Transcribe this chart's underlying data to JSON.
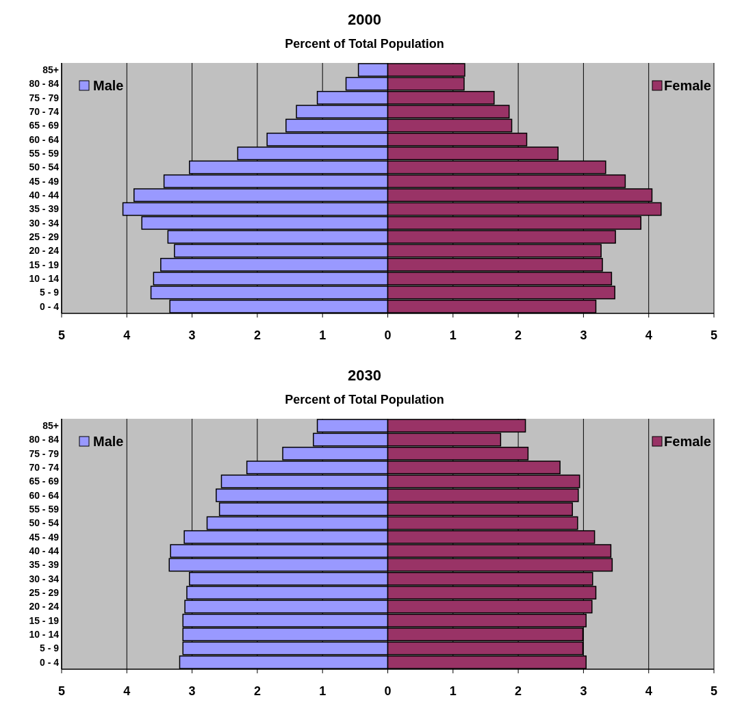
{
  "chart_data": [
    {
      "type": "bar",
      "orientation": "horizontal",
      "stacked": true,
      "title": "2000",
      "subtitle": "Percent of Total Population",
      "categories": [
        "85+",
        "80 - 84",
        "75 - 79",
        "70 - 74",
        "65 - 69",
        "60 - 64",
        "55 - 59",
        "50 - 54",
        "45 - 49",
        "40 - 44",
        "35 - 39",
        "30 - 34",
        "25 - 29",
        "20 - 24",
        "15 - 19",
        "10 - 14",
        "5 - 9",
        "0 - 4"
      ],
      "series": [
        {
          "name": "Male",
          "color": "#9999ff",
          "values": [
            -0.45,
            -0.64,
            -1.08,
            -1.4,
            -1.56,
            -1.85,
            -2.3,
            -3.04,
            -3.43,
            -3.89,
            -4.06,
            -3.77,
            -3.37,
            -3.27,
            -3.48,
            -3.59,
            -3.63,
            -3.34
          ]
        },
        {
          "name": "Female",
          "color": "#993366",
          "values": [
            1.18,
            1.17,
            1.63,
            1.86,
            1.9,
            2.13,
            2.61,
            3.34,
            3.64,
            4.05,
            4.19,
            3.88,
            3.49,
            3.27,
            3.29,
            3.43,
            3.48,
            3.19
          ]
        }
      ],
      "xlim": [
        -5,
        5
      ],
      "xticks": [
        {
          "value": -5,
          "label": "5"
        },
        {
          "value": -4,
          "label": "4"
        },
        {
          "value": -3,
          "label": "3"
        },
        {
          "value": -2,
          "label": "2"
        },
        {
          "value": -1,
          "label": "1"
        },
        0,
        1,
        2,
        3,
        4,
        5
      ],
      "grid": "x",
      "legend": "top"
    },
    {
      "type": "bar",
      "orientation": "horizontal",
      "stacked": true,
      "title": "2030",
      "subtitle": "Percent of Total Population",
      "categories": [
        "85+",
        "80 - 84",
        "75 - 79",
        "70 - 74",
        "65 - 69",
        "60 - 64",
        "55 - 59",
        "50 - 54",
        "45 - 49",
        "40 - 44",
        "35 - 39",
        "30 - 34",
        "25 - 29",
        "20 - 24",
        "15 - 19",
        "10 - 14",
        "5 - 9",
        "0 - 4"
      ],
      "series": [
        {
          "name": "Male",
          "color": "#9999ff",
          "values": [
            -1.08,
            -1.14,
            -1.61,
            -2.16,
            -2.55,
            -2.63,
            -2.58,
            -2.77,
            -3.12,
            -3.33,
            -3.35,
            -3.04,
            -3.08,
            -3.11,
            -3.14,
            -3.14,
            -3.14,
            -3.19
          ]
        },
        {
          "name": "Female",
          "color": "#993366",
          "values": [
            2.11,
            1.73,
            2.15,
            2.64,
            2.94,
            2.92,
            2.83,
            2.91,
            3.17,
            3.42,
            3.44,
            3.14,
            3.19,
            3.13,
            3.04,
            2.99,
            2.99,
            3.04
          ]
        }
      ],
      "xlim": [
        -5,
        5
      ],
      "xticks": [
        {
          "value": -5,
          "label": "5"
        },
        {
          "value": -4,
          "label": "4"
        },
        {
          "value": -3,
          "label": "3"
        },
        {
          "value": -2,
          "label": "2"
        },
        {
          "value": -1,
          "label": "1"
        },
        0,
        1,
        2,
        3,
        4,
        5
      ],
      "grid": "x",
      "legend": "top"
    }
  ]
}
